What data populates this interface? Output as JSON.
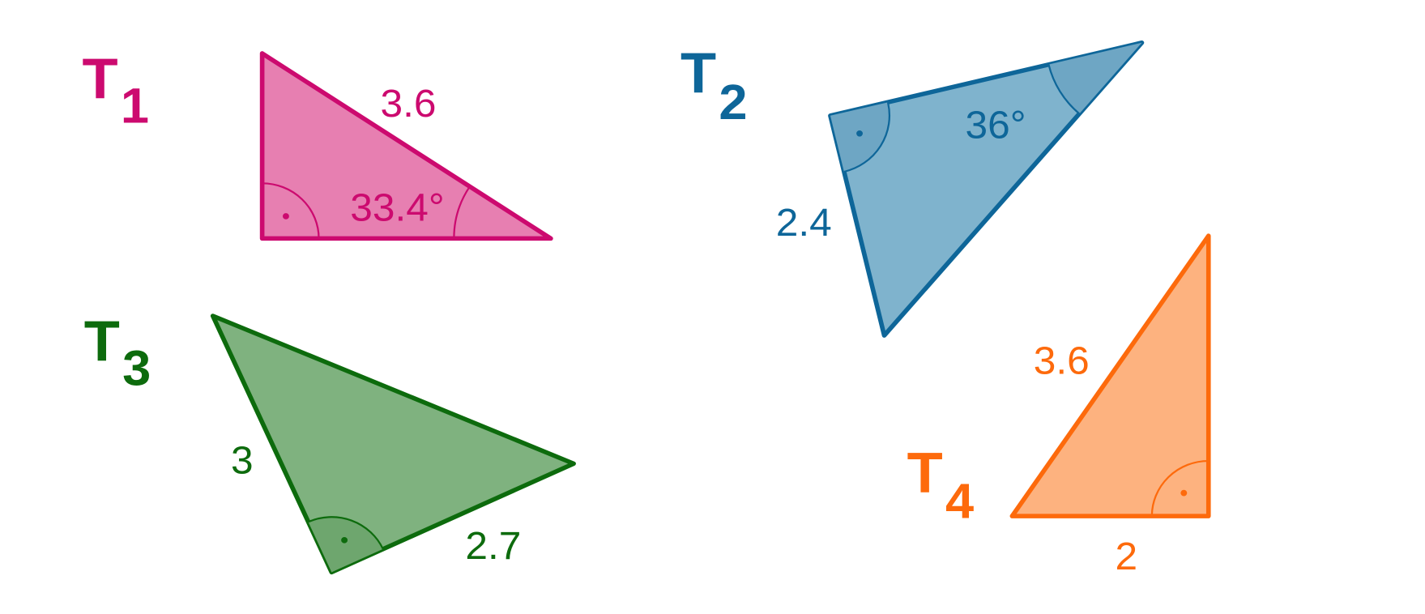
{
  "triangles": [
    {
      "name": "T",
      "subscript": "1",
      "labels": [
        "3.6",
        "33.4°"
      ]
    },
    {
      "name": "T",
      "subscript": "2",
      "labels": [
        "36°",
        "2.4"
      ]
    },
    {
      "name": "T",
      "subscript": "3",
      "labels": [
        "3",
        "2.7"
      ]
    },
    {
      "name": "T",
      "subscript": "4",
      "labels": [
        "3.6",
        "2"
      ]
    }
  ]
}
